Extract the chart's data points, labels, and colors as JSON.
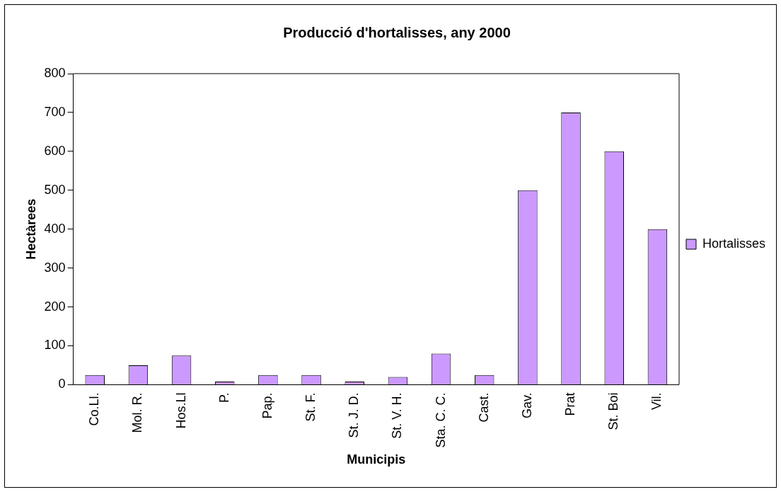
{
  "chart_data": {
    "type": "bar",
    "title": "Producció d'hortalisses, any 2000",
    "xlabel": "Municipis",
    "ylabel": "Hectàrees",
    "categories": [
      "Co.Ll.",
      "Mol. R.",
      "Hos.Ll",
      "P.",
      "Pap.",
      "St. F.",
      "St. J. D.",
      "St. V. H.",
      "Sta. C. C.",
      "Cast.",
      "Gav.",
      "Prat",
      "St. Boi",
      "Vil."
    ],
    "series": [
      {
        "name": "Hortalisses",
        "color": "#cc99ff",
        "values": [
          25,
          50,
          75,
          8,
          25,
          25,
          8,
          20,
          80,
          25,
          500,
          700,
          600,
          400
        ]
      }
    ],
    "ylim": [
      0,
      800
    ],
    "yticks": [
      0,
      100,
      200,
      300,
      400,
      500,
      600,
      700,
      800
    ],
    "grid": false,
    "legend": "right"
  }
}
